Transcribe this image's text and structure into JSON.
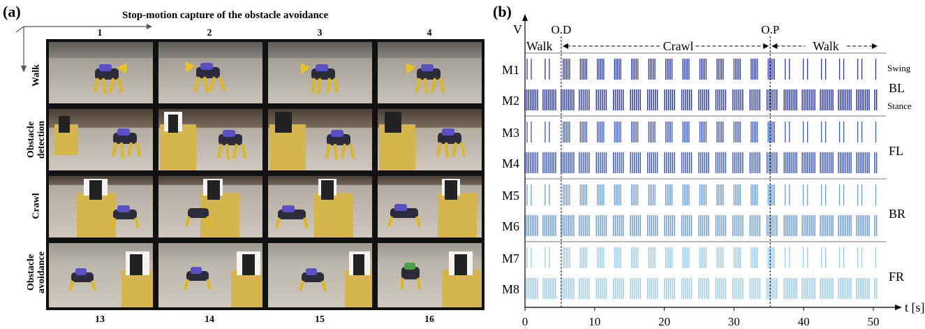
{
  "panel_a": {
    "label": "(a)",
    "title": "Stop-motion capture of the obstacle avoidance",
    "columns_top": [
      "1",
      "2",
      "3",
      "4"
    ],
    "columns_bottom": [
      "13",
      "14",
      "15",
      "16"
    ],
    "rows": [
      "Walk",
      "Obstacle detection",
      "Crawl",
      "Obstacle avoidance"
    ]
  },
  "panel_b": {
    "label": "(b)",
    "ylabel": "V",
    "xlabel": "t [s]",
    "markers": [
      "O.D",
      "O.P"
    ],
    "phases": [
      "Walk",
      "Crawl",
      "Walk"
    ],
    "side_labels": {
      "swing": "Swing",
      "stance": "Stance"
    }
  },
  "chart_data": {
    "type": "raster",
    "x": [
      0,
      10,
      20,
      30,
      40,
      50
    ],
    "xlim": [
      0,
      51.5
    ],
    "xlabel": "t [s]",
    "ylabel": "V",
    "channels": [
      "M1",
      "M2",
      "M3",
      "M4",
      "M5",
      "M6",
      "M7",
      "M8"
    ],
    "groups": [
      {
        "name": "BL",
        "channels": [
          "M1",
          "M2"
        ],
        "color": "#2c3a9e"
      },
      {
        "name": "FL",
        "channels": [
          "M3",
          "M4"
        ],
        "color": "#3d5bb8"
      },
      {
        "name": "BR",
        "channels": [
          "M5",
          "M6"
        ],
        "color": "#6a9cd2"
      },
      {
        "name": "FR",
        "channels": [
          "M7",
          "M8"
        ],
        "color": "#9ccbe6"
      }
    ],
    "events": [
      {
        "label": "O.D",
        "t": 5.2
      },
      {
        "label": "O.P",
        "t": 35.2
      }
    ],
    "phases": [
      {
        "label": "Walk",
        "start": 0,
        "end": 5.2
      },
      {
        "label": "Crawl",
        "start": 5.2,
        "end": 35.2
      },
      {
        "label": "Walk",
        "start": 35.2,
        "end": 50.5
      }
    ]
  }
}
